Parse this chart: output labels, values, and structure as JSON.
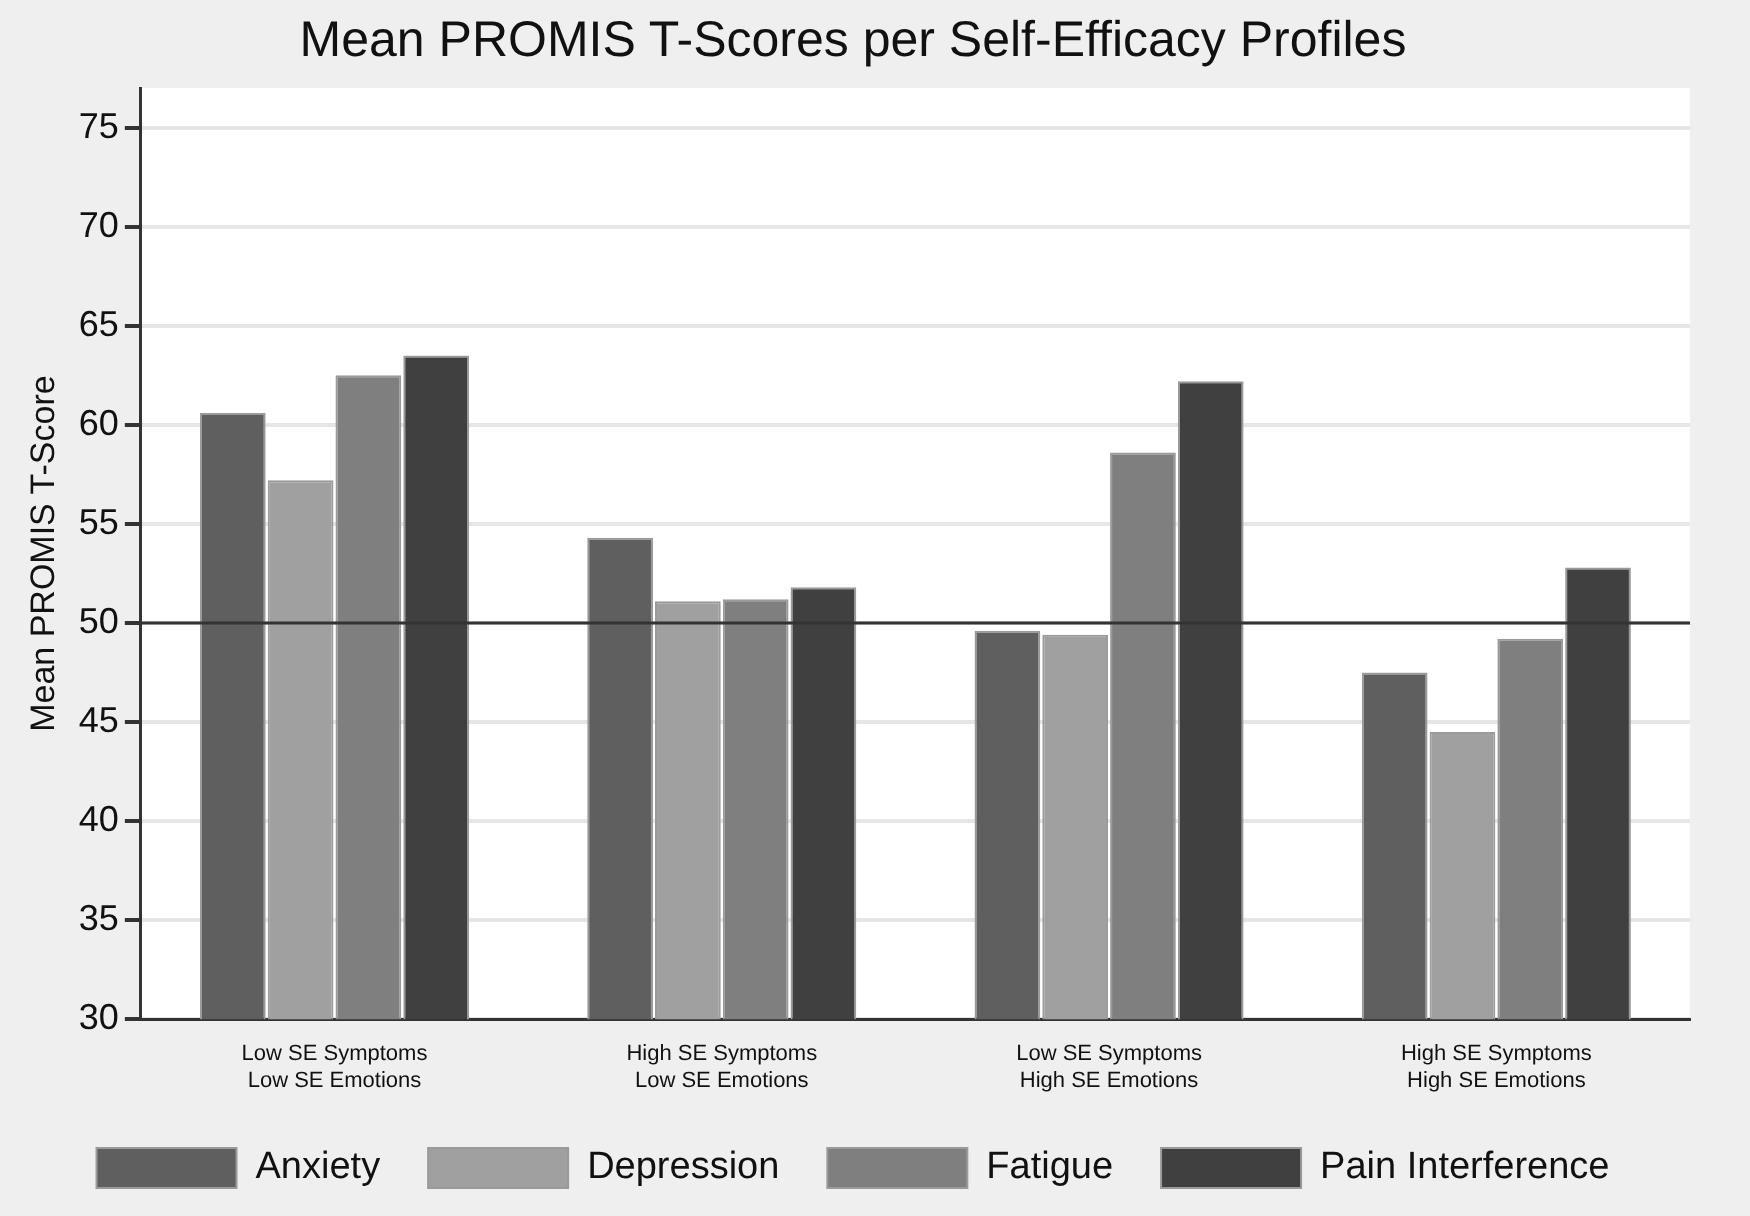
{
  "chart_data": {
    "type": "bar",
    "title": "Mean PROMIS T-Scores per Self-Efficacy Profiles",
    "ylabel": "Mean PROMIS T-Score",
    "categories": [
      "Low SE Symptoms\nLow SE Emotions",
      "High SE Symptoms\nLow SE Emotions",
      "Low SE Symptoms\nHigh SE Emotions",
      "High SE Symptoms\nHigh SE Emotions"
    ],
    "series": [
      {
        "name": "Anxiety",
        "color": "#5f5f5f",
        "values": [
          60.6,
          54.3,
          49.6,
          47.5
        ]
      },
      {
        "name": "Depression",
        "color": "#a0a0a0",
        "values": [
          57.2,
          51.1,
          49.4,
          44.5
        ]
      },
      {
        "name": "Fatigue",
        "color": "#7f7f7f",
        "values": [
          62.5,
          51.2,
          58.6,
          49.2
        ]
      },
      {
        "name": "Pain Interference",
        "color": "#404040",
        "values": [
          63.5,
          51.8,
          62.2,
          52.8
        ]
      }
    ],
    "ylim": [
      30,
      77
    ],
    "yticks": [
      30,
      35,
      40,
      45,
      50,
      55,
      60,
      65,
      70,
      75
    ],
    "grid": "y",
    "legend": "bottom",
    "ref_lines": [
      {
        "axis": "y",
        "value": 50,
        "color": "#333333"
      }
    ]
  }
}
